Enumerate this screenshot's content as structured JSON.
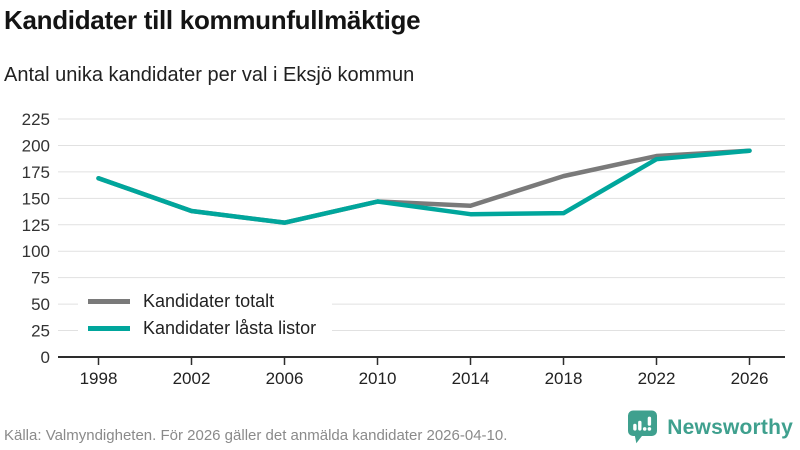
{
  "header": {
    "title": "Kandidater till kommunfullmäktige",
    "subtitle": "Antal unika kandidater per val i Eksjö kommun"
  },
  "chart_data": {
    "type": "line",
    "x": [
      1998,
      2002,
      2006,
      2010,
      2014,
      2018,
      2022,
      2026
    ],
    "series": [
      {
        "name": "Kandidater totalt",
        "color": "#7a7a7a",
        "values": [
          169,
          138,
          127,
          147,
          143,
          171,
          190,
          195
        ]
      },
      {
        "name": "Kandidater låsta listor",
        "color": "#00a69c",
        "values": [
          169,
          138,
          127,
          147,
          135,
          136,
          187,
          195
        ]
      }
    ],
    "ylim": [
      0,
      225
    ],
    "yticks": [
      0,
      25,
      50,
      75,
      100,
      125,
      150,
      175,
      200,
      225
    ],
    "grid": "horizontal",
    "legend_position": "inside-bottom-left",
    "xlabel": "",
    "ylabel": ""
  },
  "footer": {
    "source": "Källa: Valmyndigheten. För 2026 gäller det anmälda kandidater 2026-04-10."
  },
  "branding": {
    "name": "Newsworthy",
    "logo_icon": "newsworthy-speech-bubble-bar-chart-icon",
    "color": "#3fa08e"
  }
}
